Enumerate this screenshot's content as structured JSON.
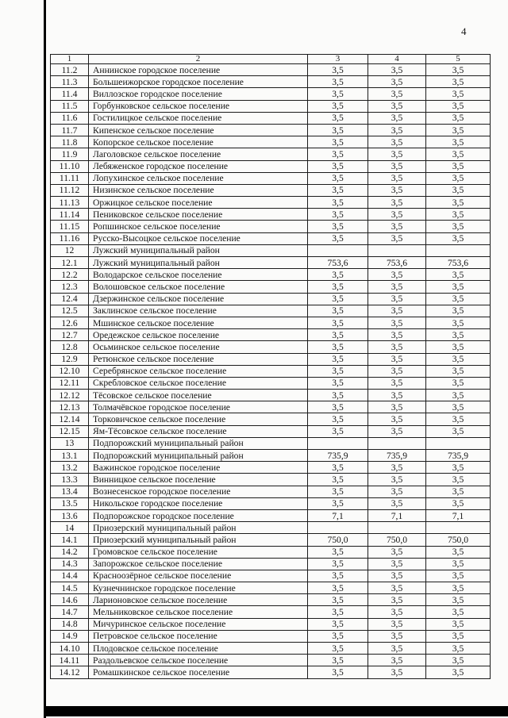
{
  "page": {
    "number": "4"
  },
  "table": {
    "headers": [
      "1",
      "2",
      "3",
      "4",
      "5"
    ],
    "rows": [
      [
        "11.2",
        "Аннинское городское поселение",
        "3,5",
        "3,5",
        "3,5"
      ],
      [
        "11.3",
        "Большеижорское городское поселение",
        "3,5",
        "3,5",
        "3,5"
      ],
      [
        "11.4",
        "Виллозское городское поселение",
        "3,5",
        "3,5",
        "3,5"
      ],
      [
        "11.5",
        "Горбунковское сельское поселение",
        "3,5",
        "3,5",
        "3,5"
      ],
      [
        "11.6",
        "Гостилицкое сельское поселение",
        "3,5",
        "3,5",
        "3,5"
      ],
      [
        "11.7",
        "Кипенское сельское поселение",
        "3,5",
        "3,5",
        "3,5"
      ],
      [
        "11.8",
        "Копорское сельское поселение",
        "3,5",
        "3,5",
        "3,5"
      ],
      [
        "11.9",
        "Лаголовское сельское поселение",
        "3,5",
        "3,5",
        "3,5"
      ],
      [
        "11.10",
        "Лебяженское городское поселение",
        "3,5",
        "3,5",
        "3,5"
      ],
      [
        "11.11",
        "Лопухинское сельское поселение",
        "3,5",
        "3,5",
        "3,5"
      ],
      [
        "11.12",
        "Низинское сельское поселение",
        "3,5",
        "3,5",
        "3,5"
      ],
      [
        "11.13",
        "Оржицкое сельское поселение",
        "3,5",
        "3,5",
        "3,5"
      ],
      [
        "11.14",
        "Пениковское сельское поселение",
        "3,5",
        "3,5",
        "3,5"
      ],
      [
        "11.15",
        "Ропшинское сельское поселение",
        "3,5",
        "3,5",
        "3,5"
      ],
      [
        "11.16",
        "Русско-Высоцкое сельское поселение",
        "3,5",
        "3,5",
        "3,5"
      ],
      [
        "12",
        "Лужский муниципальный район",
        "",
        "",
        ""
      ],
      [
        "12.1",
        "Лужский муниципальный район",
        "753,6",
        "753,6",
        "753,6"
      ],
      [
        "12.2",
        "Володарское сельское поселение",
        "3,5",
        "3,5",
        "3,5"
      ],
      [
        "12.3",
        "Волошовское сельское поселение",
        "3,5",
        "3,5",
        "3,5"
      ],
      [
        "12.4",
        "Дзержинское сельское поселение",
        "3,5",
        "3,5",
        "3,5"
      ],
      [
        "12.5",
        "Заклинское сельское поселение",
        "3,5",
        "3,5",
        "3,5"
      ],
      [
        "12.6",
        "Мшинское сельское поселение",
        "3,5",
        "3,5",
        "3,5"
      ],
      [
        "12.7",
        "Оредежское сельское поселение",
        "3,5",
        "3,5",
        "3,5"
      ],
      [
        "12.8",
        "Осьминское сельское поселение",
        "3,5",
        "3,5",
        "3,5"
      ],
      [
        "12.9",
        "Ретюнское сельское поселение",
        "3,5",
        "3,5",
        "3,5"
      ],
      [
        "12.10",
        "Серебрянское сельское поселение",
        "3,5",
        "3,5",
        "3,5"
      ],
      [
        "12.11",
        "Скребловское сельское поселение",
        "3,5",
        "3,5",
        "3,5"
      ],
      [
        "12.12",
        "Тёсовское сельское поселение",
        "3,5",
        "3,5",
        "3,5"
      ],
      [
        "12.13",
        "Толмачёвское городское поселение",
        "3,5",
        "3,5",
        "3,5"
      ],
      [
        "12.14",
        "Торковичское сельское поселение",
        "3,5",
        "3,5",
        "3,5"
      ],
      [
        "12.15",
        "Ям-Тёсовское сельское поселение",
        "3,5",
        "3,5",
        "3,5"
      ],
      [
        "13",
        "Подпорожский муниципальный район",
        "",
        "",
        ""
      ],
      [
        "13.1",
        "Подпорожский муниципальный район",
        "735,9",
        "735,9",
        "735,9"
      ],
      [
        "13.2",
        "Важинское городское поселение",
        "3,5",
        "3,5",
        "3,5"
      ],
      [
        "13.3",
        "Винницкое сельское поселение",
        "3,5",
        "3,5",
        "3,5"
      ],
      [
        "13.4",
        "Вознесенское городское поселение",
        "3,5",
        "3,5",
        "3,5"
      ],
      [
        "13.5",
        "Никольское городское поселение",
        "3,5",
        "3,5",
        "3,5"
      ],
      [
        "13.6",
        "Подпорожское городское поселение",
        "7,1",
        "7,1",
        "7,1"
      ],
      [
        "14",
        "Приозерский муниципальный район",
        "",
        "",
        ""
      ],
      [
        "14.1",
        "Приозерский муниципальный район",
        "750,0",
        "750,0",
        "750,0"
      ],
      [
        "14.2",
        "Громовское сельское поселение",
        "3,5",
        "3,5",
        "3,5"
      ],
      [
        "14.3",
        "Запорожское сельское поселение",
        "3,5",
        "3,5",
        "3,5"
      ],
      [
        "14.4",
        "Красноозёрное сельское поселение",
        "3,5",
        "3,5",
        "3,5"
      ],
      [
        "14.5",
        "Кузнечнинское городское поселение",
        "3,5",
        "3,5",
        "3,5"
      ],
      [
        "14.6",
        "Ларионовское сельское поселение",
        "3,5",
        "3,5",
        "3,5"
      ],
      [
        "14.7",
        "Мельниковское сельское поселение",
        "3,5",
        "3,5",
        "3,5"
      ],
      [
        "14.8",
        "Мичуринское сельское поселение",
        "3,5",
        "3,5",
        "3,5"
      ],
      [
        "14.9",
        "Петровское сельское поселение",
        "3,5",
        "3,5",
        "3,5"
      ],
      [
        "14.10",
        "Плодовское сельское поселение",
        "3,5",
        "3,5",
        "3,5"
      ],
      [
        "14.11",
        "Раздольевское сельское поселение",
        "3,5",
        "3,5",
        "3,5"
      ],
      [
        "14.12",
        "Ромашкинское сельское поселение",
        "3,5",
        "3,5",
        "3,5"
      ]
    ]
  }
}
